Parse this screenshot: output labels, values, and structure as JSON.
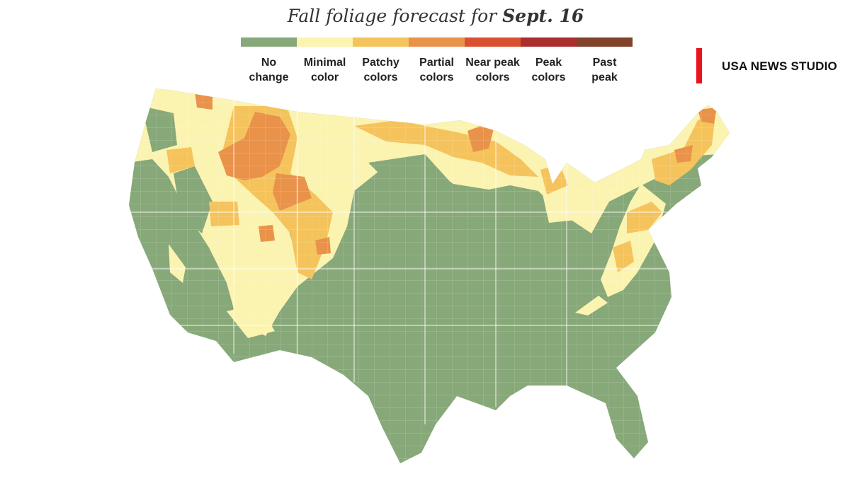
{
  "title": {
    "prefix": "Fall foliage forecast for ",
    "date": "Sept. 16"
  },
  "legend": [
    {
      "label": "No\nchange",
      "color": "#87a878"
    },
    {
      "label": "Minimal\ncolor",
      "color": "#fbf3b0"
    },
    {
      "label": "Patchy\ncolors",
      "color": "#f5c35c"
    },
    {
      "label": "Partial\ncolors",
      "color": "#e9924a"
    },
    {
      "label": "Near peak\ncolors",
      "color": "#da5131"
    },
    {
      "label": "Peak\ncolors",
      "color": "#aa2e2e"
    },
    {
      "label": "Past\npeak",
      "color": "#80422a"
    }
  ],
  "brand": "USA NEWS STUDIO",
  "map": {
    "region": "Contiguous United States",
    "base_category": "No change",
    "highlighted_categories": [
      "Minimal color",
      "Patchy colors",
      "Partial colors"
    ]
  }
}
